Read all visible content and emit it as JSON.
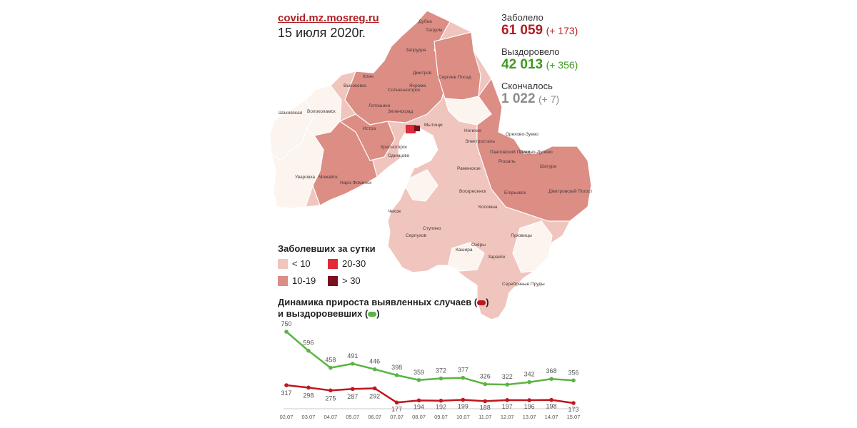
{
  "header": {
    "site": "covid.mz.mosreg.ru",
    "date": "15 июля 2020г."
  },
  "stats": [
    {
      "label": "Заболело",
      "value": "61 059",
      "delta": "(+ 173)",
      "color": "#b01f24"
    },
    {
      "label": "Выздоровело",
      "value": "42 013",
      "delta": "(+ 356)",
      "color": "#3e9a1f"
    },
    {
      "label": "Скончалось",
      "value": "1 022",
      "delta": "(+ 7)",
      "color": "#8c8c8c"
    }
  ],
  "map": {
    "districts": [
      "Дубна",
      "Талдом",
      "Запрудня",
      "Клин",
      "Дмитров",
      "Сергиев Посад",
      "Высоковск",
      "Солнечногорск",
      "Яхрома",
      "Лотошино",
      "Шаховская",
      "Волоколамск",
      "Зеленоград",
      "Мытищи",
      "Истра",
      "Красногорск",
      "Ногинск",
      "Орехово-Зуево",
      "Электросталь",
      "Павловский Посад",
      "Ликино-Дулёво",
      "Шатура",
      "Одинцово",
      "Раменское",
      "Рошаль",
      "Уваровка",
      "Можайск",
      "Наро-Фоминск",
      "Егорьевск",
      "Дмитровский Погост",
      "Воскресенск",
      "Чехов",
      "Коломна",
      "Серпухов",
      "Ступино",
      "Луховицы",
      "Озёры",
      "Кашира",
      "Зарайск",
      "Серебряные Пруды"
    ],
    "colors": {
      "low": "#f0c5bd",
      "mid": "#dc8d84",
      "high": "#e02a3a",
      "top": "#7a0f1d",
      "none": "#fbf4ef"
    }
  },
  "legend": {
    "title": "Заболевших за сутки",
    "items": [
      {
        "label": "< 10",
        "color": "#f0c5bd"
      },
      {
        "label": "20-30",
        "color": "#e02a3a"
      },
      {
        "label": "10-19",
        "color": "#dc8d84"
      },
      {
        "label": "> 30",
        "color": "#7a0f1d"
      }
    ]
  },
  "chart_title": {
    "line1": "Динамика прироста выявленных случаев (",
    "line1_end": ")",
    "line2": "и выздоровевших (",
    "line2_end": ")"
  },
  "chart_data": {
    "type": "line",
    "categories": [
      "02.07",
      "03.07",
      "04.07",
      "05.07",
      "06.07",
      "07.07",
      "08.07",
      "09.07",
      "10.07",
      "11.07",
      "12.07",
      "13.07",
      "14.07",
      "15.07"
    ],
    "series": [
      {
        "key": "recovered",
        "color": "#5bb443",
        "values": [
          750,
          596,
          458,
          491,
          446,
          398,
          359,
          372,
          377,
          326,
          322,
          342,
          368,
          356
        ]
      },
      {
        "key": "cases",
        "color": "#c0161d",
        "values": [
          317,
          298,
          275,
          287,
          292,
          177,
          194,
          192,
          199,
          188,
          197,
          196,
          198,
          173
        ]
      }
    ]
  }
}
